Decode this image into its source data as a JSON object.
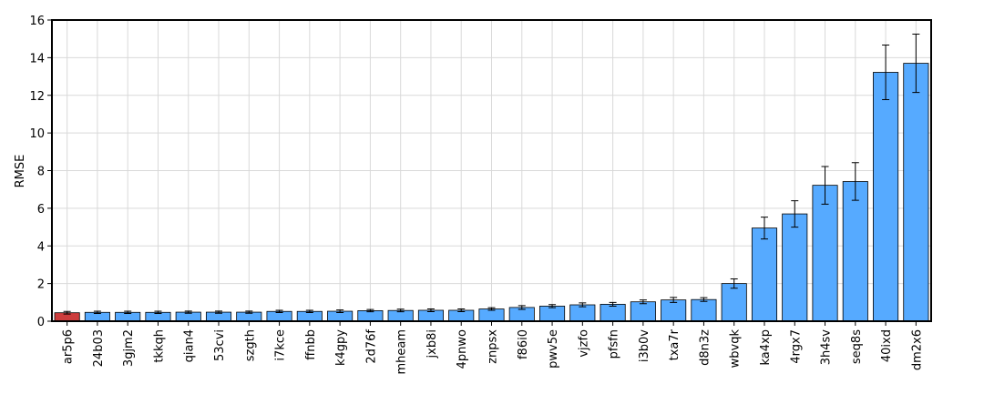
{
  "chart_data": {
    "type": "bar",
    "ylabel": "RMSE",
    "categories": [
      "ar5p6",
      "24b03",
      "3gjm2",
      "tkkqh",
      "qian4",
      "53cvi",
      "szgth",
      "i7kce",
      "ffnbb",
      "k4gpy",
      "2d76f",
      "mheam",
      "jxb8i",
      "4pnwo",
      "znpsx",
      "f86i0",
      "pwv5e",
      "vjzfo",
      "pfsfn",
      "i3b0v",
      "txa7r",
      "d8n3z",
      "wbvqk",
      "ka4xp",
      "4rgx7",
      "3h4sv",
      "seq8s",
      "40ixd",
      "dm2x6"
    ],
    "values": [
      0.45,
      0.47,
      0.47,
      0.47,
      0.48,
      0.48,
      0.48,
      0.52,
      0.52,
      0.53,
      0.56,
      0.57,
      0.58,
      0.58,
      0.65,
      0.73,
      0.8,
      0.87,
      0.9,
      1.03,
      1.13,
      1.15,
      2.0,
      4.95,
      5.7,
      7.22,
      7.42,
      13.22,
      13.7
    ],
    "errors": [
      0.07,
      0.06,
      0.06,
      0.06,
      0.06,
      0.06,
      0.06,
      0.06,
      0.06,
      0.07,
      0.06,
      0.07,
      0.07,
      0.07,
      0.07,
      0.1,
      0.08,
      0.1,
      0.1,
      0.1,
      0.13,
      0.1,
      0.25,
      0.58,
      0.7,
      1.0,
      1.0,
      1.45,
      1.55
    ],
    "colors": [
      "#cc3d3d",
      "#56aaff",
      "#56aaff",
      "#56aaff",
      "#56aaff",
      "#56aaff",
      "#56aaff",
      "#56aaff",
      "#56aaff",
      "#56aaff",
      "#56aaff",
      "#56aaff",
      "#56aaff",
      "#56aaff",
      "#56aaff",
      "#56aaff",
      "#56aaff",
      "#56aaff",
      "#56aaff",
      "#56aaff",
      "#56aaff",
      "#56aaff",
      "#56aaff",
      "#56aaff",
      "#56aaff",
      "#56aaff",
      "#56aaff",
      "#56aaff",
      "#56aaff"
    ],
    "ylim": [
      0,
      16
    ],
    "yticks": [
      0,
      2,
      4,
      6,
      8,
      10,
      12,
      14,
      16
    ],
    "grid": true
  }
}
